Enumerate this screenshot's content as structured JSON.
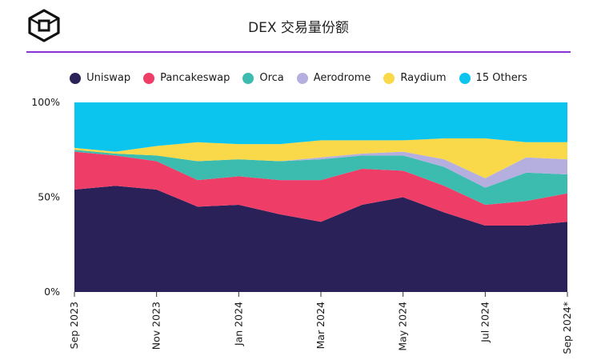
{
  "title": "DEX 交易量份额",
  "chart_data": {
    "type": "area",
    "stacked": true,
    "normalized": true,
    "x": [
      "Sep 2023",
      "Oct 2023",
      "Nov 2023",
      "Dec 2023",
      "Jan 2024",
      "Feb 2024",
      "Mar 2024",
      "Apr 2024",
      "May 2024",
      "Jun 2024",
      "Jul 2024",
      "Aug 2024",
      "Sep 2024*"
    ],
    "xtick_labels": [
      "Sep 2023",
      "Nov 2023",
      "Jan 2024",
      "Mar 2024",
      "May 2024",
      "Jul 2024",
      "Sep 2024*"
    ],
    "xtick_index": [
      0,
      2,
      4,
      6,
      8,
      10,
      12
    ],
    "ytick_labels": [
      "0%",
      "50%",
      "100%"
    ],
    "ylim": [
      0,
      100
    ],
    "legend_position": "top",
    "series": [
      {
        "name": "Uniswap",
        "color": "#2b2159",
        "values": [
          54,
          56,
          54,
          45,
          46,
          41,
          37,
          46,
          50,
          42,
          35,
          35,
          37
        ]
      },
      {
        "name": "Pancakeswap",
        "color": "#ee3d66",
        "values": [
          20,
          16,
          15,
          14,
          15,
          18,
          22,
          19,
          14,
          14,
          11,
          13,
          15
        ]
      },
      {
        "name": "Orca",
        "color": "#3cbcaf",
        "values": [
          1,
          1,
          3,
          10,
          9,
          10,
          11,
          7,
          8,
          10,
          9,
          15,
          10
        ]
      },
      {
        "name": "Aerodrome",
        "color": "#b5afe0",
        "values": [
          0,
          0,
          0,
          0,
          0,
          0,
          1,
          1,
          2,
          4,
          5,
          8,
          8
        ]
      },
      {
        "name": "Raydium",
        "color": "#f9d94a",
        "values": [
          1,
          1,
          5,
          10,
          8,
          9,
          9,
          7,
          6,
          11,
          21,
          8,
          9
        ]
      },
      {
        "name": "15 Others",
        "color": "#0bc5ee",
        "values": [
          24,
          26,
          23,
          21,
          22,
          22,
          20,
          20,
          20,
          19,
          19,
          21,
          21
        ]
      }
    ]
  }
}
